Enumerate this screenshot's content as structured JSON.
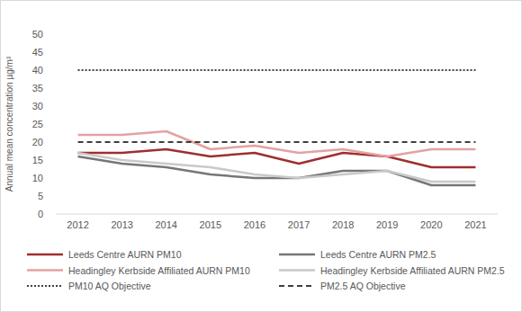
{
  "chart_data": {
    "type": "line",
    "y_label": "Annual mean concentration µg/m³",
    "categories": [
      "2012",
      "2013",
      "2014",
      "2015",
      "2016",
      "2017",
      "2018",
      "2019",
      "2020",
      "2021"
    ],
    "series": [
      {
        "name": "Leeds Centre AURN PM10",
        "color": "#9e2f2f",
        "line_style": "solid",
        "values": [
          17,
          17,
          18,
          16,
          17,
          14,
          17,
          16,
          13,
          13
        ]
      },
      {
        "name": "Leeds Centre AURN PM2.5",
        "color": "#767676",
        "line_style": "solid",
        "values": [
          16,
          14,
          13,
          11,
          10,
          10,
          12,
          12,
          8,
          8
        ]
      },
      {
        "name": "Headingley Kerbside Affiliated AURN PM10",
        "color": "#e4a2a2",
        "line_style": "solid",
        "values": [
          22,
          22,
          23,
          18,
          19,
          17,
          18,
          16,
          18,
          18
        ]
      },
      {
        "name": "Headingley Kerbside Affiliated AURN PM2.5",
        "color": "#c9c9c9",
        "line_style": "solid",
        "values": [
          17,
          15,
          14,
          13,
          11,
          10,
          11,
          12,
          9,
          9
        ]
      },
      {
        "name": "PM10 AQ Objective",
        "color": "#000000",
        "line_style": "dotted",
        "values": [
          40,
          40,
          40,
          40,
          40,
          40,
          40,
          40,
          40,
          40
        ]
      },
      {
        "name": "PM2.5 AQ Objective",
        "color": "#000000",
        "line_style": "dashed",
        "values": [
          20,
          20,
          20,
          20,
          20,
          20,
          20,
          20,
          20,
          20
        ]
      }
    ],
    "ylim": [
      0,
      50
    ],
    "yticks": [
      0,
      5,
      10,
      15,
      20,
      25,
      30,
      35,
      40,
      45,
      50
    ],
    "grid": false,
    "legend": "bottom"
  }
}
